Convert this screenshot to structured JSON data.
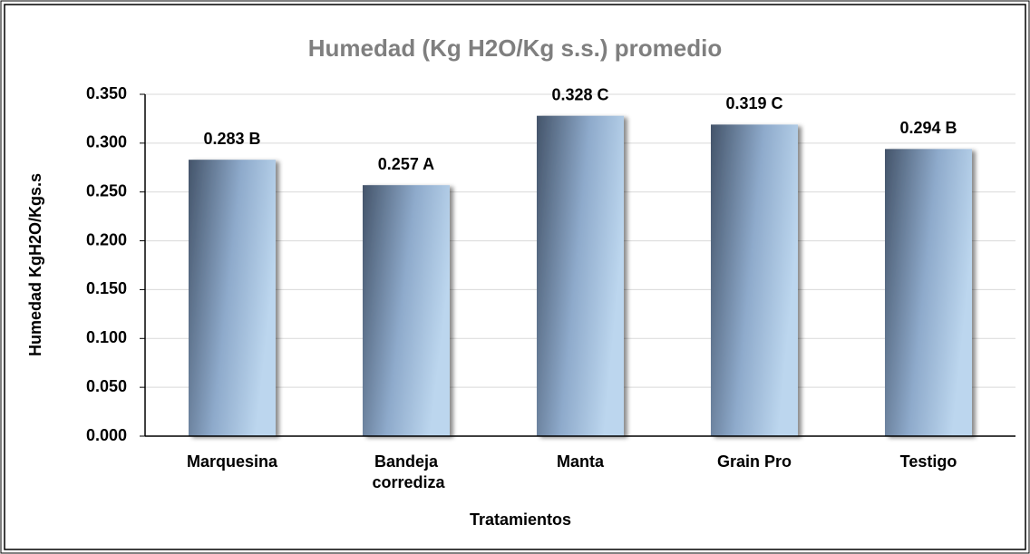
{
  "chart_data": {
    "type": "bar",
    "title": "Humedad (Kg H2O/Kg s.s.) promedio",
    "x_label": "Tratamientos",
    "y_label": "Humedad KgH2O/Kgs.s",
    "categories": [
      "Marquesina",
      "Bandeja corrediza",
      "Manta",
      "Grain Pro",
      "Testigo"
    ],
    "values": [
      0.283,
      0.257,
      0.328,
      0.319,
      0.294
    ],
    "value_labels": [
      "0.283 B",
      "0.257 A",
      "0.328 C",
      "0.319 C",
      "0.294 B"
    ],
    "ylim": [
      0,
      0.35
    ],
    "yticks": [
      {
        "value": 0,
        "label": "0.000"
      },
      {
        "value": 0.05,
        "label": "0.050"
      },
      {
        "value": 0.1,
        "label": "0.100"
      },
      {
        "value": 0.15,
        "label": "0.150"
      },
      {
        "value": 0.2,
        "label": "0.200"
      },
      {
        "value": 0.25,
        "label": "0.250"
      },
      {
        "value": 0.3,
        "label": "0.300"
      },
      {
        "value": 0.35,
        "label": "0.350"
      }
    ],
    "grid": true
  }
}
